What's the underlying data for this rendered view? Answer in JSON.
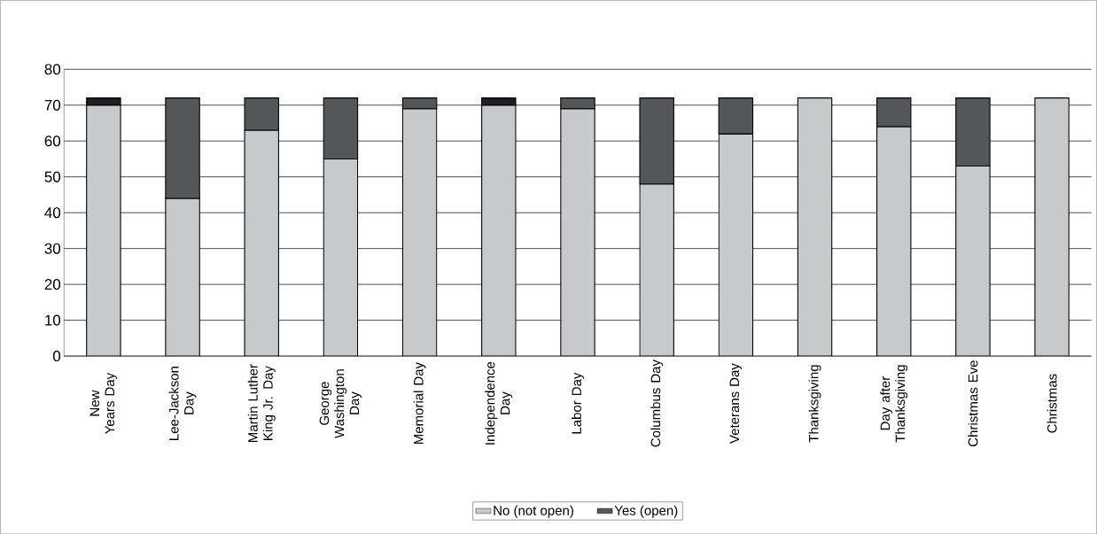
{
  "chart_data": {
    "type": "bar",
    "stacked": true,
    "categories": [
      "New Years Day",
      "Lee-Jackson Day",
      "Martin Luther King Jr. Day",
      "George Washington Day",
      "Memorial Day",
      "Independence Day",
      "Labor Day",
      "Columbus Day",
      "Veterans Day",
      "Thanksgiving",
      "Day after Thanksgiving",
      "Christmas Eve",
      "Christmas"
    ],
    "series": [
      {
        "name": "No (not open)",
        "color": "#c8c9cb",
        "values": [
          70,
          44,
          63,
          55,
          69,
          70,
          69,
          48,
          62,
          72,
          64,
          53,
          72
        ]
      },
      {
        "name": "Yes (open)",
        "color": "#555658",
        "colors": [
          "#231f20",
          "#555658",
          "#555658",
          "#555658",
          "#555658",
          "#231f20",
          "#555658",
          "#555658",
          "#555658",
          "#555658",
          "#555658",
          "#555658",
          "#555658"
        ],
        "values": [
          2,
          28,
          9,
          17,
          3,
          2,
          3,
          24,
          10,
          0,
          8,
          19,
          0
        ]
      }
    ],
    "ylim": [
      0,
      80
    ],
    "yticks": [
      0,
      10,
      20,
      30,
      40,
      50,
      60,
      70,
      80
    ],
    "grid": "y",
    "legend": "bottom"
  }
}
